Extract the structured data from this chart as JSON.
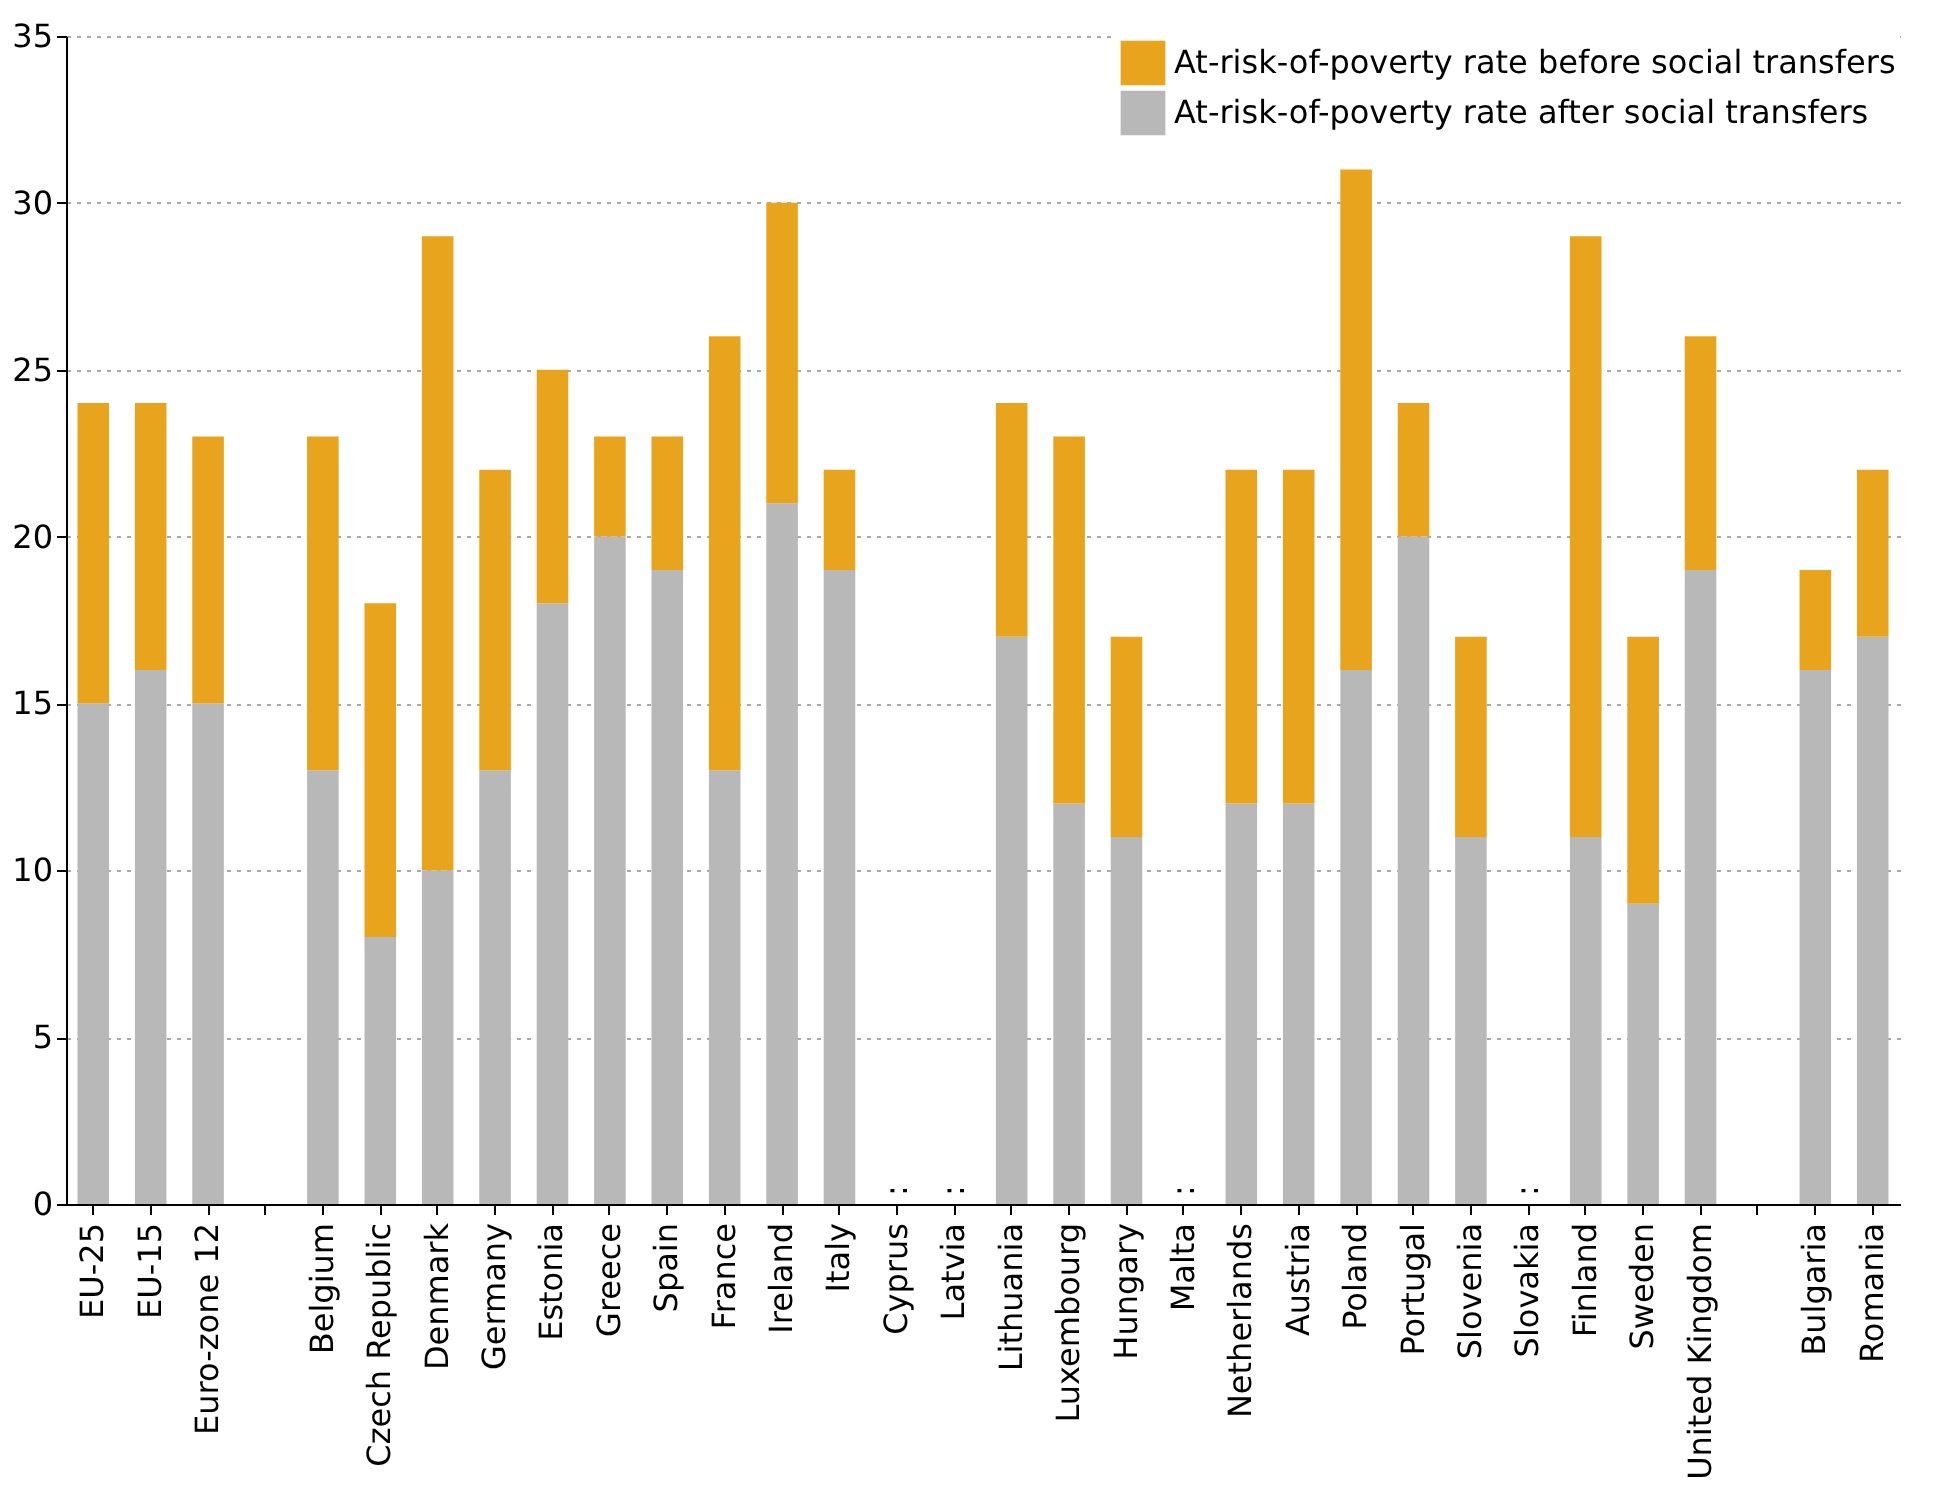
{
  "chart_data": {
    "type": "bar",
    "stacked": true,
    "categories": [
      "EU-25",
      "EU-15",
      "Euro-zone 12",
      null,
      "Belgium",
      "Czech Republic",
      "Denmark",
      "Germany",
      "Estonia",
      "Greece",
      "Spain",
      "France",
      "Ireland",
      "Italy",
      "Cyprus",
      "Latvia",
      "Lithuania",
      "Luxembourg",
      "Hungary",
      "Malta",
      "Netherlands",
      "Austria",
      "Poland",
      "Portugal",
      "Slovenia",
      "Slovakia",
      "Finland",
      "Sweden",
      "United Kingdom",
      null,
      "Bulgaria",
      "Romania"
    ],
    "series": [
      {
        "name": "At-risk-of-poverty rate after social transfers",
        "color": "#b8b8b8",
        "values": [
          15,
          16,
          15,
          null,
          13,
          8,
          10,
          13,
          18,
          20,
          19,
          13,
          21,
          19,
          null,
          null,
          17,
          12,
          11,
          null,
          12,
          12,
          16,
          20,
          11,
          null,
          11,
          9,
          19,
          null,
          16,
          17
        ],
        "value_labels": [
          null,
          null,
          null,
          null,
          null,
          null,
          null,
          null,
          null,
          null,
          null,
          null,
          null,
          null,
          ":",
          ":",
          null,
          null,
          null,
          ":",
          null,
          null,
          null,
          null,
          null,
          ":",
          null,
          null,
          null,
          null,
          null,
          null
        ]
      },
      {
        "name": "At-risk-of-poverty rate before social transfers",
        "color": "#e8a41c",
        "values": [
          9,
          8,
          8,
          null,
          10,
          10,
          19,
          9,
          7,
          3,
          4,
          13,
          9,
          3,
          null,
          null,
          7,
          11,
          6,
          null,
          10,
          10,
          15,
          4,
          6,
          null,
          18,
          8,
          7,
          null,
          3,
          5
        ]
      }
    ],
    "ylim": [
      0,
      35
    ],
    "yticks": [
      0,
      5,
      10,
      15,
      20,
      25,
      30,
      35
    ],
    "grid": "y",
    "legend": "top right"
  }
}
